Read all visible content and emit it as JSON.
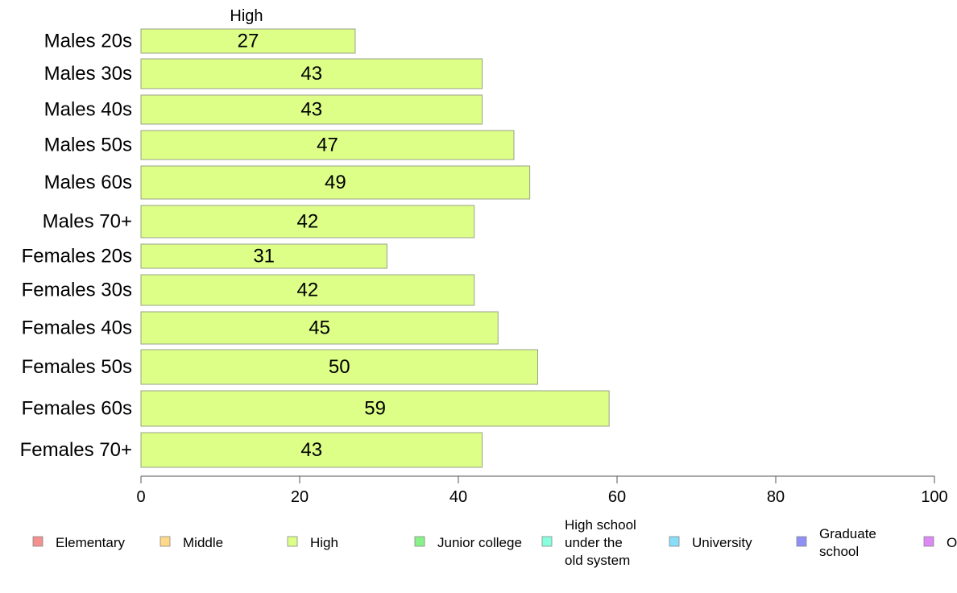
{
  "chart_data": {
    "type": "bar",
    "orientation": "horizontal",
    "series_title": "High",
    "categories": [
      "Males 20s",
      "Males 30s",
      "Males 40s",
      "Males 50s",
      "Males 60s",
      "Males 70+",
      "Females 20s",
      "Females 30s",
      "Females 40s",
      "Females 50s",
      "Females 60s",
      "Females 70+"
    ],
    "series": [
      {
        "name": "High",
        "values": [
          27,
          43,
          43,
          47,
          49,
          42,
          31,
          42,
          45,
          50,
          59,
          43
        ],
        "color": "#ddff88"
      }
    ],
    "xlim": [
      0,
      100
    ],
    "xticks": [
      0,
      20,
      40,
      60,
      80,
      100
    ],
    "grid": false,
    "legend_position": "bottom",
    "legend": [
      {
        "label": "Elementary",
        "color": "#f59090"
      },
      {
        "label": "Middle",
        "color": "#ffd88a"
      },
      {
        "label": "High",
        "color": "#ddff88"
      },
      {
        "label": "Junior college",
        "color": "#88f288"
      },
      {
        "label": "High school under the old system",
        "color": "#88ffdd"
      },
      {
        "label": "University",
        "color": "#88ddf8"
      },
      {
        "label": "Graduate school",
        "color": "#8f8ff8"
      },
      {
        "label": "O",
        "color": "#dd88f5"
      }
    ]
  }
}
